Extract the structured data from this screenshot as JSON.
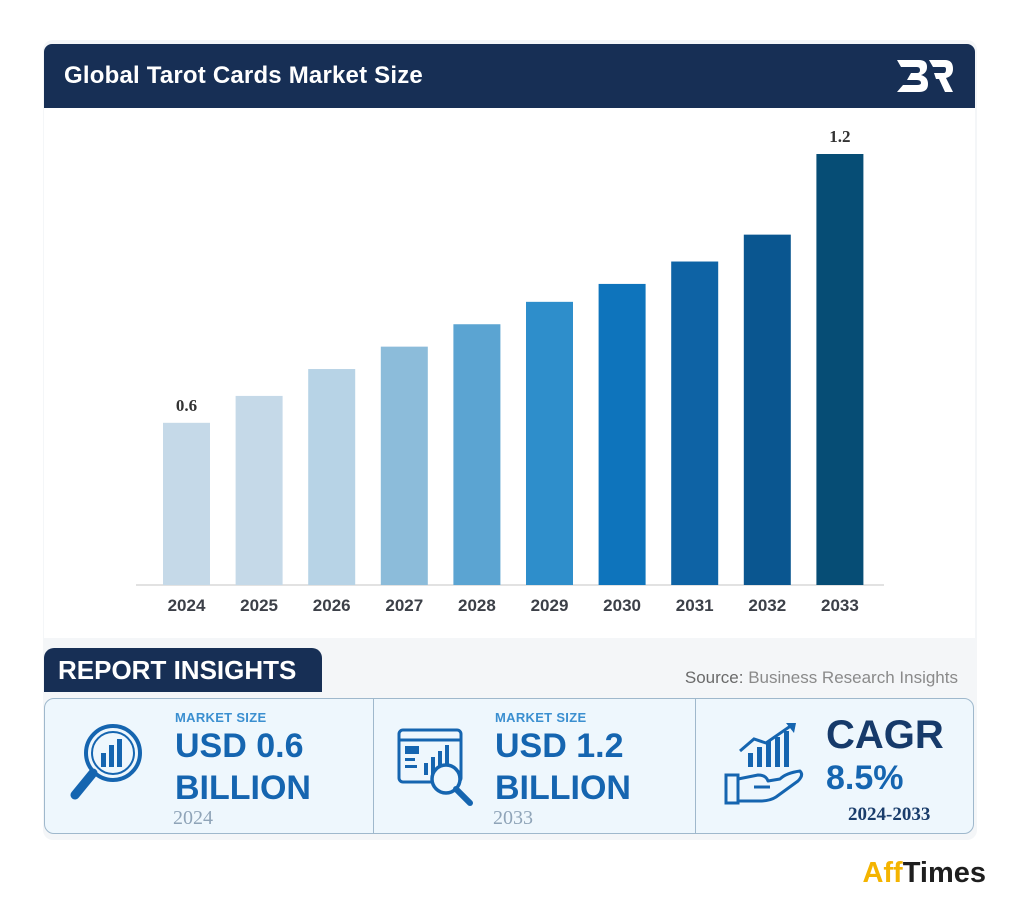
{
  "header": {
    "title": "Global Tarot Cards Market Size"
  },
  "chart_data": {
    "type": "bar",
    "categories": [
      "2024",
      "2025",
      "2026",
      "2027",
      "2028",
      "2029",
      "2030",
      "2031",
      "2032",
      "2033"
    ],
    "values": [
      0.6,
      0.66,
      0.72,
      0.77,
      0.82,
      0.87,
      0.91,
      0.96,
      1.02,
      1.2
    ],
    "data_labels": [
      "0.6",
      "",
      "",
      "",
      "",
      "",
      "",
      "",
      "",
      "1.2"
    ],
    "colors": [
      "#c5d9e8",
      "#c5d9e8",
      "#b7d3e6",
      "#8cbcda",
      "#5ba4d2",
      "#2e8ecb",
      "#0e74bc",
      "#0e63a5",
      "#0a5690",
      "#064d75"
    ],
    "title": "Global Tarot Cards Market Size",
    "xlabel": "",
    "ylabel": "",
    "ylim": [
      0.45,
      1.2
    ],
    "grid": false
  },
  "insights": {
    "tab_label": "REPORT INSIGHTS",
    "source_label": "Source:",
    "source_name": "Business Research Insights",
    "box1": {
      "label": "MARKET SIZE",
      "value_line1": "USD 0.6",
      "value_line2": "BILLION",
      "year": "2024"
    },
    "box2": {
      "label": "MARKET SIZE",
      "value_line1": "USD 1.2",
      "value_line2": "BILLION",
      "year": "2033"
    },
    "box3": {
      "title": "CAGR",
      "value": "8.5%",
      "years": "2024-2033"
    }
  },
  "icons": {
    "logo": "br-logo",
    "box1": "magnifier-chart-icon",
    "box2": "report-magnifier-icon",
    "box3": "hand-growth-chart-icon"
  },
  "footer": {
    "brand_part1": "Aff",
    "brand_part2": "Times"
  }
}
